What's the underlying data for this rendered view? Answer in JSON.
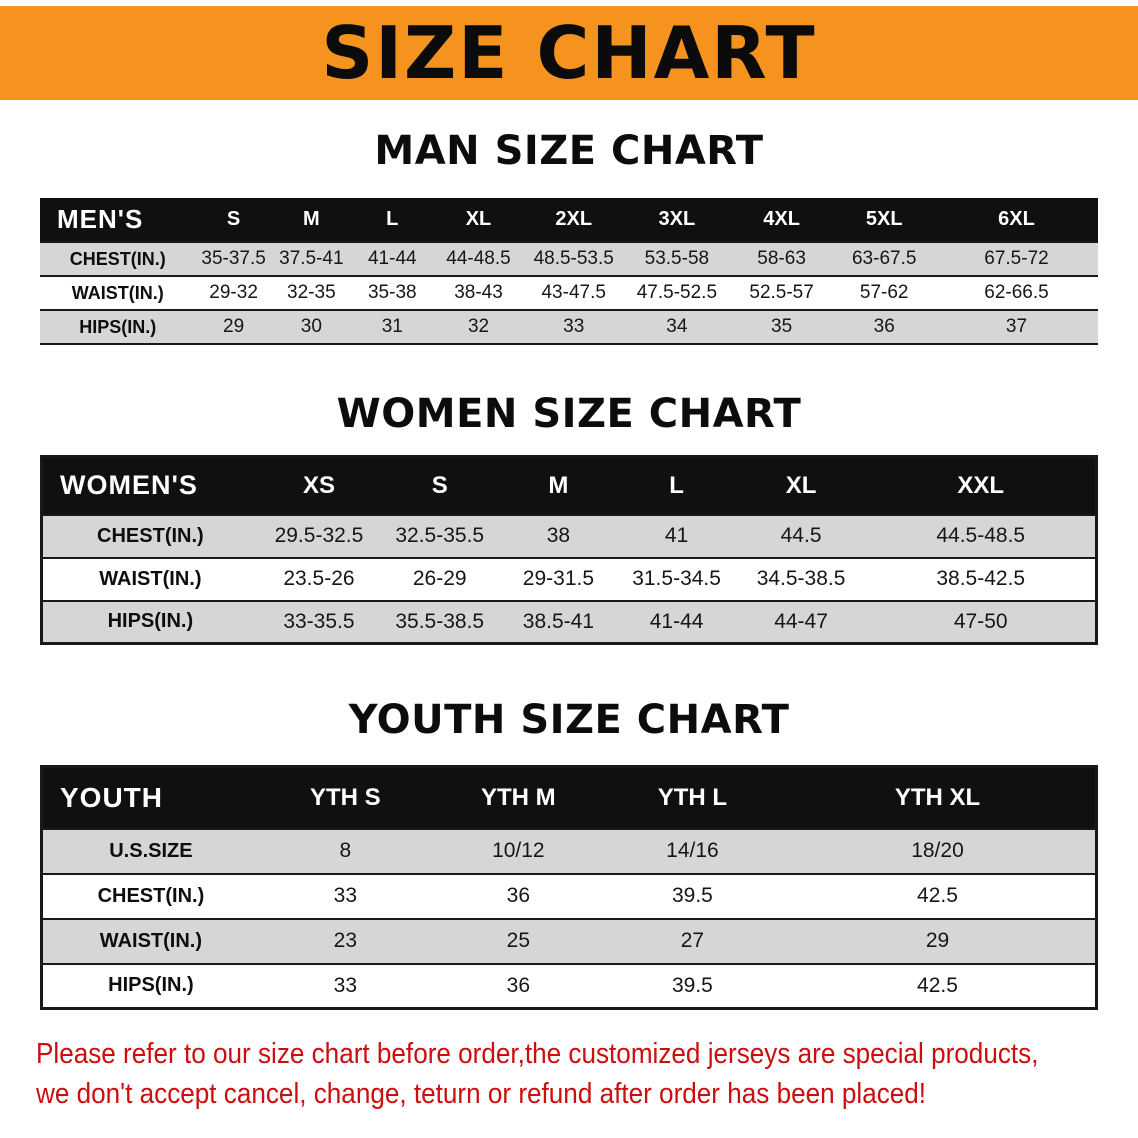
{
  "banner": {
    "title": "SIZE CHART"
  },
  "chart_data": [
    {
      "type": "table",
      "title": "MAN SIZE CHART",
      "header_label": "MEN'S",
      "columns": [
        "S",
        "M",
        "L",
        "XL",
        "2XL",
        "3XL",
        "4XL",
        "5XL",
        "6XL"
      ],
      "rows": [
        {
          "label": "CHEST(IN.)",
          "values": [
            "35-37.5",
            "37.5-41",
            "41-44",
            "44-48.5",
            "48.5-53.5",
            "53.5-58",
            "58-63",
            "63-67.5",
            "67.5-72"
          ]
        },
        {
          "label": "WAIST(IN.)",
          "values": [
            "29-32",
            "32-35",
            "35-38",
            "38-43",
            "43-47.5",
            "47.5-52.5",
            "52.5-57",
            "57-62",
            "62-66.5"
          ]
        },
        {
          "label": "HIPS(IN.)",
          "values": [
            "29",
            "30",
            "31",
            "32",
            "33",
            "34",
            "35",
            "36",
            "37"
          ]
        }
      ]
    },
    {
      "type": "table",
      "title": "WOMEN SIZE CHART",
      "header_label": "WOMEN'S",
      "columns": [
        "XS",
        "S",
        "M",
        "L",
        "XL",
        "XXL"
      ],
      "rows": [
        {
          "label": "CHEST(IN.)",
          "values": [
            "29.5-32.5",
            "32.5-35.5",
            "38",
            "41",
            "44.5",
            "44.5-48.5"
          ]
        },
        {
          "label": "WAIST(IN.)",
          "values": [
            "23.5-26",
            "26-29",
            "29-31.5",
            "31.5-34.5",
            "34.5-38.5",
            "38.5-42.5"
          ]
        },
        {
          "label": "HIPS(IN.)",
          "values": [
            "33-35.5",
            "35.5-38.5",
            "38.5-41",
            "41-44",
            "44-47",
            "47-50"
          ]
        }
      ]
    },
    {
      "type": "table",
      "title": "YOUTH SIZE CHART",
      "header_label": "YOUTH",
      "columns": [
        "YTH S",
        "YTH M",
        "YTH L",
        "YTH XL"
      ],
      "rows": [
        {
          "label": "U.S.SIZE",
          "values": [
            "8",
            "10/12",
            "14/16",
            "18/20"
          ]
        },
        {
          "label": "CHEST(IN.)",
          "values": [
            "33",
            "36",
            "39.5",
            "42.5"
          ]
        },
        {
          "label": "WAIST(IN.)",
          "values": [
            "23",
            "25",
            "27",
            "29"
          ]
        },
        {
          "label": "HIPS(IN.)",
          "values": [
            "33",
            "36",
            "39.5",
            "42.5"
          ]
        }
      ]
    }
  ],
  "disclaimer": {
    "line1": "Please refer to our size chart before order,the customized jerseys are special products,",
    "line2": "we don't accept cancel, change, teturn or refund after order has been placed!"
  },
  "colors": {
    "banner_orange": "#f6921e",
    "table_header_black": "#101010",
    "row_stripe_gray": "#d6d6d6",
    "disclaimer_red": "#cb0e0e"
  }
}
